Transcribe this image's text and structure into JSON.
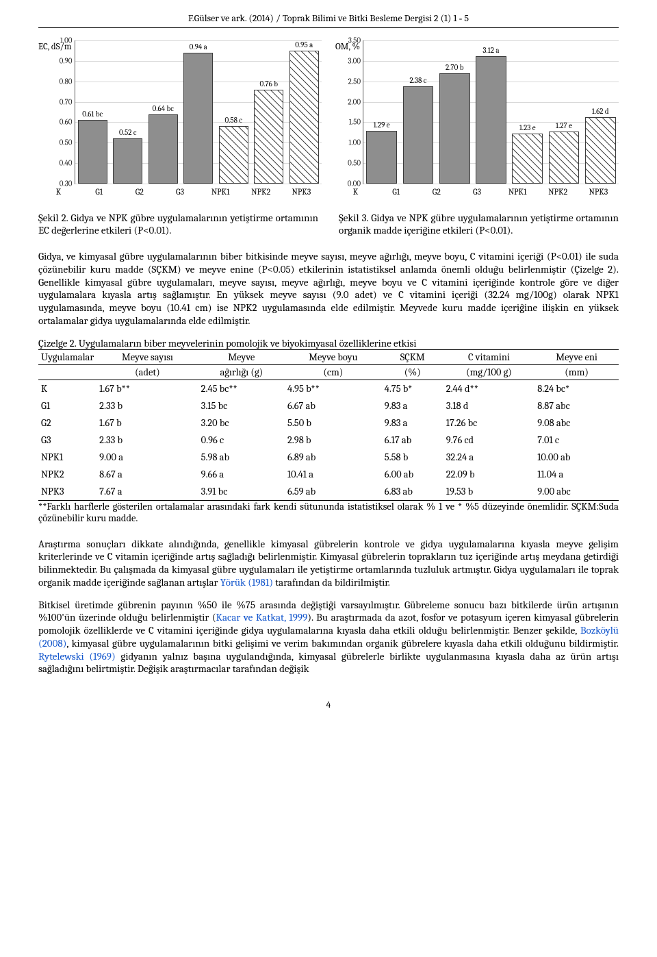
{
  "page": {
    "running_head": "F.Gülser ve ark. (2014) / Toprak Bilimi ve Bitki Besleme Dergisi 2 (1) 1 ‑ 5",
    "page_number": "4"
  },
  "chart_ec": {
    "title": "EC, dS/m",
    "ymin": 0.3,
    "ymax": 1.0,
    "ystep": 0.1,
    "yticks": [
      "1.00",
      "0.90",
      "0.80",
      "0.70",
      "0.60",
      "0.50",
      "0.40",
      "0.30"
    ],
    "categories": [
      "K",
      "G1",
      "G2",
      "G3",
      "NPK1",
      "NPK2",
      "NPK3"
    ],
    "values": [
      0.61,
      0.52,
      0.64,
      0.94,
      0.58,
      0.76,
      0.95
    ],
    "bar_labels": [
      "0.61 bc",
      "0.52 c",
      "0.64 bc",
      "0.94 a",
      "0.58 c",
      "0.76 b",
      "0.95 a"
    ],
    "styles": [
      "solid",
      "solid",
      "solid",
      "solid",
      "hatch",
      "hatch",
      "hatch"
    ]
  },
  "chart_om": {
    "title": "OM, %",
    "ymin": 0.0,
    "ymax": 3.5,
    "ystep": 0.5,
    "yticks": [
      "3.50",
      "3.00",
      "2.50",
      "2.00",
      "1.50",
      "1.00",
      "0.50",
      "0.00"
    ],
    "categories": [
      "K",
      "G1",
      "G2",
      "G3",
      "NPK1",
      "NPK2",
      "NPK3"
    ],
    "values": [
      1.29,
      2.38,
      2.7,
      3.12,
      1.23,
      1.27,
      1.62
    ],
    "bar_labels": [
      "1.29 e",
      "2.38 c",
      "2.70 b",
      "3.12 a",
      "1.23 e",
      "1.27 e",
      "1.62 d"
    ],
    "styles": [
      "solid",
      "solid",
      "solid",
      "solid",
      "hatch",
      "hatch",
      "hatch"
    ]
  },
  "captions": {
    "left": "Şekil 2. Gidya ve NPK gübre uygulamalarının yetiştirme ortamının EC değerlerine etkileri (P<0.01).",
    "right": "Şekil 3. Gidya ve NPK gübre uygulamalarının yetiştirme ortamının organik madde içeriğine etkileri (P<0.01)."
  },
  "para1": "Gidya, ve kimyasal gübre uygulamalarının biber bitkisinde meyve sayısı, meyve ağırlığı, meyve boyu, C vitamini içeriği (P<0.01) ile suda çözünebilir kuru madde (SÇKM) ve meyve enine (P<0.05) etkilerinin istatistiksel anlamda önemli olduğu belirlenmiştir (Çizelge 2). Genellikle kimyasal gübre uygulamaları, meyve sayısı, meyve ağırlığı, meyve boyu ve C vitamini içeriğinde kontrole göre ve diğer uygulamalara kıyasla artış sağlamıştır. En yüksek meyve sayısı (9.0 adet) ve C vitamini içeriği (32.24 mg/100g) olarak NPK1 uygulamasında, meyve boyu (10.41 cm) ise NPK2 uygulamasında elde edilmiştir. Meyvede kuru madde içeriğine ilişkin en yüksek ortalamalar gidya uygulamalarında elde edilmiştir.",
  "table": {
    "title": "Çizelge 2. Uygulamaların biber meyvelerinin pomolojik ve biyokimyasal özelliklerine etkisi",
    "head_top": [
      "Uygulamalar",
      "Meyve sayısı",
      "Meyve",
      "Meyve boyu",
      "SÇKM",
      "C vitamini",
      "Meyve eni"
    ],
    "head_bot": [
      "",
      "(adet)",
      "ağırlığı (g)",
      "(cm)",
      "(%)",
      "(mg/100 g)",
      "(mm)"
    ],
    "rows": [
      [
        "K",
        "1.67 b**",
        "2.45 bc**",
        "4.95 b**",
        "4.75 b*",
        "2.44 d**",
        "8.24 bc*"
      ],
      [
        "G1",
        "2.33 b",
        "3.15 bc",
        "6.67 ab",
        "9.83 a",
        "3.18 d",
        "8.87 abc"
      ],
      [
        "G2",
        "1.67 b",
        "3.20 bc",
        "5.50 b",
        "9.83 a",
        "17.26 bc",
        "9.08 abc"
      ],
      [
        "G3",
        "2.33 b",
        "0.96 c",
        "2.98 b",
        "6.17 ab",
        "9.76 cd",
        "7.01 c"
      ],
      [
        "NPK1",
        "9.00 a",
        "5.98 ab",
        "6.89 ab",
        "5.58 b",
        "32.24 a",
        "10.00 ab"
      ],
      [
        "NPK2",
        "8.67 a",
        "9.66 a",
        "10.41 a",
        "6.00 ab",
        "22.09 b",
        "11.04 a"
      ],
      [
        "NPK3",
        "7.67 a",
        "3.91 bc",
        "6.59 ab",
        "6.83 ab",
        "19.53 b",
        "9.00 abc"
      ]
    ],
    "footnote": "**Farklı harflerle gösterilen ortalamalar arasındaki fark kendi sütununda istatistiksel olarak % 1 ve * %5 düzeyinde önemlidir. SÇKM:Suda çözünebilir kuru madde."
  },
  "para2_parts": [
    {
      "t": "Araştırma sonuçları dikkate alındığında, genellikle kimyasal gübrelerin kontrole ve gidya uygulamalarına kıyasla meyve gelişim kriterlerinde ve C vitamin içeriğinde artış sağladığı belirlenmiştir. Kimyasal gübrelerin toprakların tuz içeriğinde artış meydana getirdiği bilinmektedir. Bu çalışmada da kimyasal gübre uygulamaları ile yetiştirme ortamlarında tuzluluk artmıştır. Gidya uygulamaları ile toprak organik madde içeriğinde sağlanan artışlar "
    },
    {
      "t": "Yörük (1981)",
      "ref": true
    },
    {
      "t": " tarafından da bildirilmiştir."
    }
  ],
  "para3_parts": [
    {
      "t": "Bitkisel üretimde gübrenin payının %50 ile %75 arasında değiştiği varsayılmıştır. Gübreleme sonucu bazı bitkilerde ürün artışının %100'ün üzerinde olduğu belirlenmiştir ("
    },
    {
      "t": "Kacar ve Katkat, 1999",
      "ref": true
    },
    {
      "t": "). Bu araştırmada da azot, fosfor ve potasyum içeren kimyasal gübrelerin pomolojik özelliklerde ve C vitamini içeriğinde gidya uygulamalarına kıyasla daha etkili olduğu belirlenmiştir. Benzer şekilde, "
    },
    {
      "t": "Bozköylü (2008)",
      "ref": true
    },
    {
      "t": ", kimyasal gübre uygulamalarının bitki gelişimi ve verim bakımından organik gübrelere kıyasla daha etkili olduğunu bildirmiştir. "
    },
    {
      "t": "Rytelewski (1969)",
      "ref": true
    },
    {
      "t": " gidyanın yalnız başına uygulandığında, kimyasal gübrelerle birlikte uygulanmasına kıyasla daha az ürün artışı sağladığını belirtmiştir. Değişik araştırmacılar tarafından değişik"
    }
  ]
}
